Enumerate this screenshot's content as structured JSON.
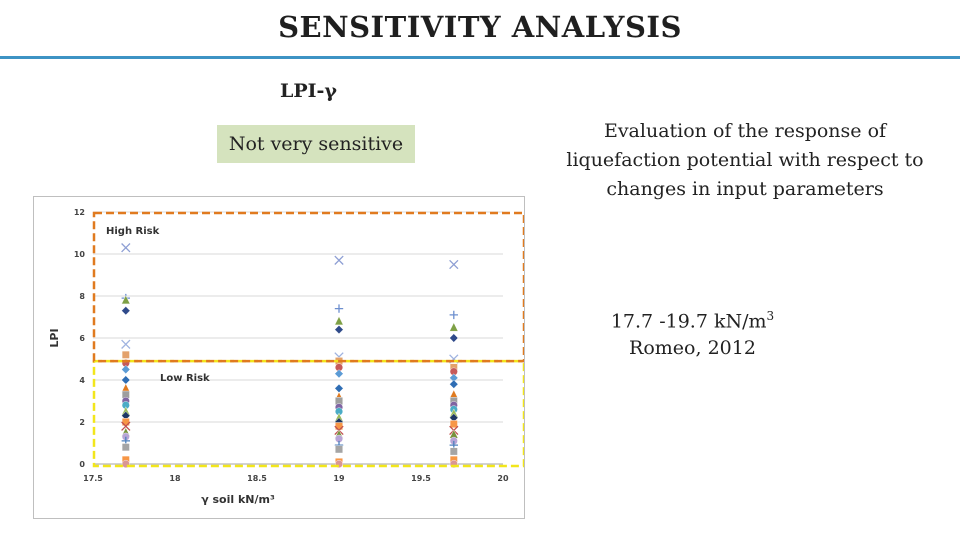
{
  "header": {
    "title": "SENSITIVITY ANALYSIS"
  },
  "subtitle": "LPI-γ",
  "badge": {
    "text": "Not very sensitive"
  },
  "description": "Evaluation of  the response of liquefaction potential with respect to changes in input parameters",
  "range": {
    "value": "17.7 -19.7 kN/m",
    "superscript": "3",
    "source": "Romeo, 2012"
  },
  "colors": {
    "accent": "#3d93c4",
    "badge_bg": "#d5e3be",
    "high_risk_border": "#e07a1f",
    "low_risk_border": "#f2e61b"
  },
  "chart_data": {
    "type": "scatter",
    "title": "",
    "xlabel": "γ soil   kN/m³",
    "ylabel": "LPI",
    "xlim": [
      17.5,
      20
    ],
    "ylim": [
      0,
      12
    ],
    "x_ticks": [
      "17.5",
      "18",
      "18.5",
      "19",
      "19.5",
      "20"
    ],
    "y_ticks": [
      "0",
      "2",
      "4",
      "6",
      "8",
      "10",
      "12"
    ],
    "grid": true,
    "regions": [
      {
        "label": "High Risk",
        "y_range": [
          4.9,
          12
        ]
      },
      {
        "label": "Low Risk",
        "y_range": [
          0,
          4.9
        ]
      }
    ],
    "series": [
      {
        "x": [
          17.7,
          19,
          19.7
        ],
        "values": [
          10.3,
          9.7,
          9.5
        ],
        "marker": "x",
        "color": "#8e9fd4"
      },
      {
        "x": [
          17.7,
          19,
          19.7
        ],
        "values": [
          7.9,
          7.4,
          7.1
        ],
        "marker": "plus",
        "color": "#6d8fcf"
      },
      {
        "x": [
          17.7,
          19,
          19.7
        ],
        "values": [
          7.8,
          6.8,
          6.5
        ],
        "marker": "triangle",
        "color": "#7ea045"
      },
      {
        "x": [
          17.7,
          19,
          19.7
        ],
        "values": [
          7.3,
          6.4,
          6.0
        ],
        "marker": "diamond",
        "color": "#2f4a8a"
      },
      {
        "x": [
          17.7,
          19,
          19.7
        ],
        "values": [
          5.7,
          5.1,
          5.0
        ],
        "marker": "x",
        "color": "#9fb3e0"
      },
      {
        "x": [
          17.7,
          19,
          19.7
        ],
        "values": [
          5.2,
          4.9,
          4.6
        ],
        "marker": "square",
        "color": "#e3a16b"
      },
      {
        "x": [
          17.7,
          19,
          19.7
        ],
        "values": [
          4.8,
          4.6,
          4.4
        ],
        "marker": "circle",
        "color": "#c55a5a"
      },
      {
        "x": [
          17.7,
          19,
          19.7
        ],
        "values": [
          4.5,
          4.3,
          4.1
        ],
        "marker": "diamond",
        "color": "#5b9bd5"
      },
      {
        "x": [
          17.7,
          19,
          19.7
        ],
        "values": [
          4.0,
          3.6,
          3.8
        ],
        "marker": "diamond",
        "color": "#2e6db4"
      },
      {
        "x": [
          17.7,
          19,
          19.7
        ],
        "values": [
          3.6,
          3.2,
          3.3
        ],
        "marker": "triangle",
        "color": "#e07a1f"
      },
      {
        "x": [
          17.7,
          19,
          19.7
        ],
        "values": [
          3.3,
          3.0,
          3.0
        ],
        "marker": "square",
        "color": "#9e9e9e"
      },
      {
        "x": [
          17.7,
          19,
          19.7
        ],
        "values": [
          3.0,
          2.7,
          2.8
        ],
        "marker": "circle",
        "color": "#8064a2"
      },
      {
        "x": [
          17.7,
          19,
          19.7
        ],
        "values": [
          2.8,
          2.5,
          2.6
        ],
        "marker": "circle",
        "color": "#4bacc6"
      },
      {
        "x": [
          17.7,
          19,
          19.7
        ],
        "values": [
          2.5,
          2.2,
          2.4
        ],
        "marker": "triangle",
        "color": "#9bbb59"
      },
      {
        "x": [
          17.7,
          19,
          19.7
        ],
        "values": [
          2.3,
          2.0,
          2.2
        ],
        "marker": "diamond",
        "color": "#1f3864"
      },
      {
        "x": [
          17.7,
          19,
          19.7
        ],
        "values": [
          2.0,
          1.8,
          1.9
        ],
        "marker": "square",
        "color": "#f79646"
      },
      {
        "x": [
          17.7,
          19,
          19.7
        ],
        "values": [
          1.8,
          1.6,
          1.6
        ],
        "marker": "x",
        "color": "#c0504d"
      },
      {
        "x": [
          17.7,
          19,
          19.7
        ],
        "values": [
          1.5,
          1.4,
          1.4
        ],
        "marker": "triangle",
        "color": "#76923c"
      },
      {
        "x": [
          17.7,
          19,
          19.7
        ],
        "values": [
          1.3,
          1.2,
          1.1
        ],
        "marker": "circle",
        "color": "#b7a4d6"
      },
      {
        "x": [
          17.7,
          19,
          19.7
        ],
        "values": [
          1.1,
          0.9,
          0.9
        ],
        "marker": "plus",
        "color": "#4f81bd"
      },
      {
        "x": [
          17.7,
          19,
          19.7
        ],
        "values": [
          0.8,
          0.7,
          0.6
        ],
        "marker": "square",
        "color": "#a5a5a5"
      },
      {
        "x": [
          17.7,
          19,
          19.7
        ],
        "values": [
          0.2,
          0.1,
          0.2
        ],
        "marker": "square",
        "color": "#f79646"
      },
      {
        "x": [
          17.7,
          19,
          19.7
        ],
        "values": [
          0.0,
          0.0,
          0.0
        ],
        "marker": "circle",
        "color": "#d99694"
      }
    ]
  }
}
